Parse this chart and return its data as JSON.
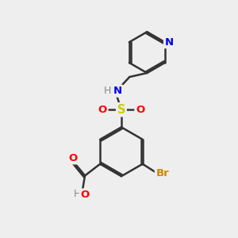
{
  "background_color": "#eeeeee",
  "bond_color": "#333333",
  "bond_width": 1.8,
  "dbo": 0.07,
  "atom_colors": {
    "N": "#0000ee",
    "O": "#ff0000",
    "S": "#cccc00",
    "Br": "#cc8800",
    "H": "#888888"
  },
  "fs": 9.5
}
